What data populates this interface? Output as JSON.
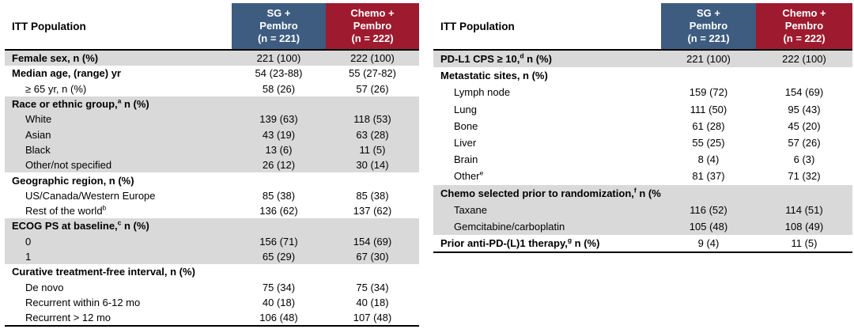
{
  "colors": {
    "header_blue": "#3d5c80",
    "header_red": "#9e1b2f",
    "row_shade": "#d9d9d9"
  },
  "left_table": {
    "title": "ITT Population",
    "col_sg": "SG +\nPembro\n(n = 221)",
    "col_chemo": "Chemo +\nPembro\n(n = 222)",
    "rows": [
      {
        "pre": "Female sex, n (%)",
        "sup": "",
        "post": "",
        "v1": "221 (100)",
        "v2": "222 (100)"
      },
      {
        "pre": "Median age, (range) yr",
        "sup": "",
        "post": "",
        "v1": "54 (23-88)",
        "v2": "55 (27-82)"
      },
      {
        "pre": "≥ 65 yr, n (%)",
        "sup": "",
        "post": "",
        "v1": "58 (26)",
        "v2": "57 (26)"
      },
      {
        "pre": "Race or ethnic group,",
        "sup": "a",
        "post": " n (%)",
        "v1": "",
        "v2": ""
      },
      {
        "pre": "White",
        "sup": "",
        "post": "",
        "v1": "139 (63)",
        "v2": "118 (53)"
      },
      {
        "pre": "Asian",
        "sup": "",
        "post": "",
        "v1": "43 (19)",
        "v2": "63 (28)"
      },
      {
        "pre": "Black",
        "sup": "",
        "post": "",
        "v1": "13 (6)",
        "v2": "11 (5)"
      },
      {
        "pre": "Other/not specified",
        "sup": "",
        "post": "",
        "v1": "26 (12)",
        "v2": "30 (14)"
      },
      {
        "pre": "Geographic region, n (%)",
        "sup": "",
        "post": "",
        "v1": "",
        "v2": ""
      },
      {
        "pre": "US/Canada/Western Europe",
        "sup": "",
        "post": "",
        "v1": "85 (38)",
        "v2": "85 (38)"
      },
      {
        "pre": "Rest of the world",
        "sup": "b",
        "post": "",
        "v1": "136 (62)",
        "v2": "137 (62)"
      },
      {
        "pre": "ECOG PS at baseline,",
        "sup": "c",
        "post": " n (%)",
        "v1": "",
        "v2": ""
      },
      {
        "pre": "0",
        "sup": "",
        "post": "",
        "v1": "156 (71)",
        "v2": "154 (69)"
      },
      {
        "pre": "1",
        "sup": "",
        "post": "",
        "v1": "65 (29)",
        "v2": "67 (30)"
      },
      {
        "pre": "Curative treatment-free interval, n (%)",
        "sup": "",
        "post": "",
        "v1": "",
        "v2": ""
      },
      {
        "pre": "De novo",
        "sup": "",
        "post": "",
        "v1": "75 (34)",
        "v2": "75 (34)"
      },
      {
        "pre": "Recurrent within 6-12 mo",
        "sup": "",
        "post": "",
        "v1": "40 (18)",
        "v2": "40 (18)"
      },
      {
        "pre": "Recurrent > 12 mo",
        "sup": "",
        "post": "",
        "v1": "106 (48)",
        "v2": "107 (48)"
      }
    ]
  },
  "right_table": {
    "title": "ITT Population",
    "col_sg": "SG +\nPembro\n(n = 221)",
    "col_chemo": "Chemo +\nPembro\n(n = 222)",
    "rows": [
      {
        "pre": "PD-L1 CPS ≥ 10,",
        "sup": "d",
        "post": " n (%)",
        "v1": "221 (100)",
        "v2": "222 (100)"
      },
      {
        "pre": "Metastatic sites, n (%)",
        "sup": "",
        "post": "",
        "v1": "",
        "v2": ""
      },
      {
        "pre": "Lymph node",
        "sup": "",
        "post": "",
        "v1": "159 (72)",
        "v2": "154 (69)"
      },
      {
        "pre": "Lung",
        "sup": "",
        "post": "",
        "v1": "111 (50)",
        "v2": "95 (43)"
      },
      {
        "pre": "Bone",
        "sup": "",
        "post": "",
        "v1": "61 (28)",
        "v2": "45 (20)"
      },
      {
        "pre": "Liver",
        "sup": "",
        "post": "",
        "v1": "55 (25)",
        "v2": "57 (26)"
      },
      {
        "pre": "Brain",
        "sup": "",
        "post": "",
        "v1": "8 (4)",
        "v2": "6 (3)"
      },
      {
        "pre": "Other",
        "sup": "e",
        "post": "",
        "v1": "81 (37)",
        "v2": "71 (32)"
      },
      {
        "pre": "Chemo selected prior to randomization,",
        "sup": "f",
        "post": " n (%)",
        "v1": "",
        "v2": ""
      },
      {
        "pre": "Taxane",
        "sup": "",
        "post": "",
        "v1": "116 (52)",
        "v2": "114 (51)"
      },
      {
        "pre": "Gemcitabine/carboplatin",
        "sup": "",
        "post": "",
        "v1": "105 (48)",
        "v2": "108 (49)"
      },
      {
        "pre": "Prior anti-PD-(L)1 therapy,",
        "sup": "g",
        "post": " n (%)",
        "v1": "9 (4)",
        "v2": "11 (5)"
      }
    ]
  }
}
